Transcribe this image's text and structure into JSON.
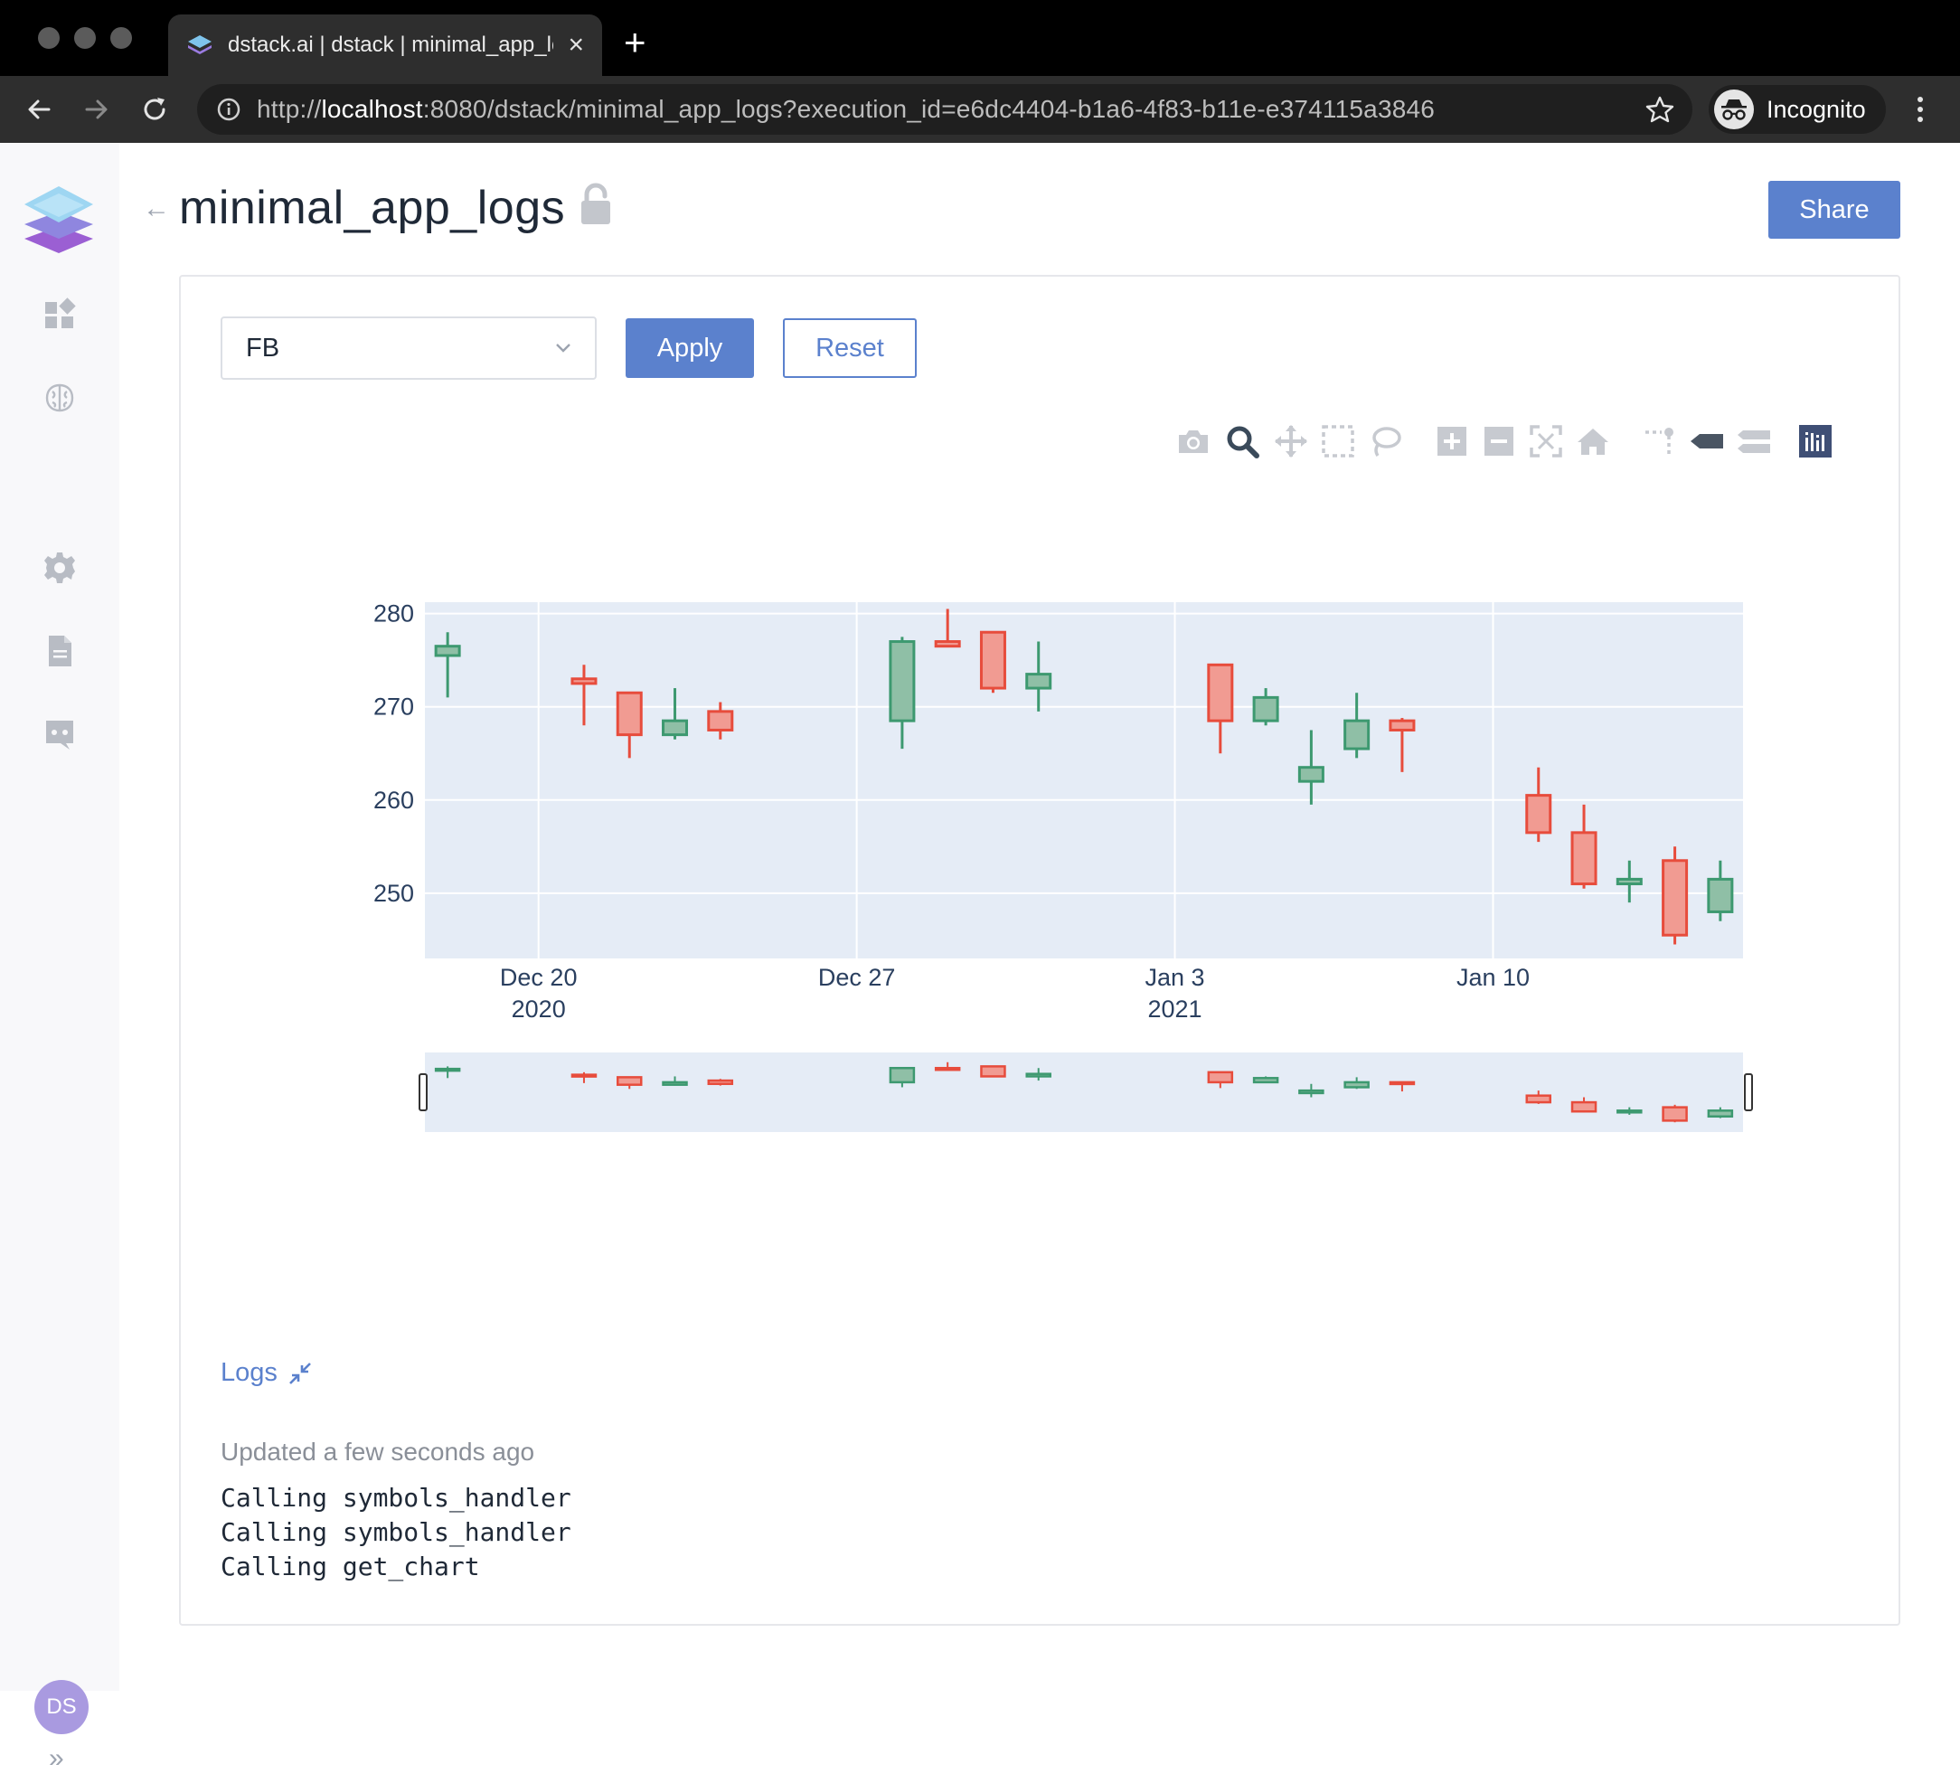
{
  "browser": {
    "tab_title": "dstack.ai | dstack | minimal_app_logs",
    "url_scheme": "http://",
    "url_host": "localhost",
    "url_rest": ":8080/dstack/minimal_app_logs?execution_id=e6dc4404-b1a6-4f83-b11e-e374115a3846",
    "profile_label": "Incognito"
  },
  "sidebar": {
    "user_initials": "DS",
    "expand_label": "»"
  },
  "header": {
    "title": "minimal_app_logs",
    "share_label": "Share"
  },
  "controls": {
    "symbol_value": "FB",
    "apply_label": "Apply",
    "reset_label": "Reset"
  },
  "modebar_icons": [
    "camera-icon",
    "zoom-icon",
    "pan-icon",
    "box-select-icon",
    "lasso-icon",
    "zoom-in-icon",
    "zoom-out-icon",
    "autoscale-icon",
    "reset-axes-icon",
    "spike-lines-icon",
    "hover-closest-icon",
    "hover-compare-icon",
    "plotly-logo-icon"
  ],
  "logs": {
    "toggle_label": "Logs",
    "updated_text": "Updated a few seconds ago",
    "lines": [
      "Calling symbols_handler",
      "Calling symbols_handler",
      "Calling get_chart"
    ]
  },
  "colors": {
    "accent": "#5b81cd",
    "increasing": "#3d9970",
    "decreasing": "#e74c3c",
    "plot_bg": "#e5ecf6"
  },
  "chart_data": {
    "type": "candlestick",
    "title": "",
    "xlabel": "",
    "ylabel": "",
    "ylim": [
      243,
      282
    ],
    "yticks": [
      250,
      260,
      270,
      280
    ],
    "xticks": [
      {
        "date": "2020-12-20",
        "label": "Dec 20",
        "sub": "2020"
      },
      {
        "date": "2020-12-27",
        "label": "Dec 27",
        "sub": ""
      },
      {
        "date": "2021-01-03",
        "label": "Jan 3",
        "sub": "2021"
      },
      {
        "date": "2021-01-10",
        "label": "Jan 10",
        "sub": ""
      }
    ],
    "x_range": [
      "2020-12-17T12:00",
      "2021-01-15T12:00"
    ],
    "grid": true,
    "rangeslider": true,
    "candles": [
      {
        "date": "2020-12-18",
        "open": 275.5,
        "high": 278.0,
        "low": 271.0,
        "close": 276.5
      },
      {
        "date": "2020-12-21",
        "open": 273.0,
        "high": 274.5,
        "low": 268.0,
        "close": 272.5
      },
      {
        "date": "2020-12-22",
        "open": 271.5,
        "high": 271.5,
        "low": 264.5,
        "close": 267.0
      },
      {
        "date": "2020-12-23",
        "open": 267.0,
        "high": 272.0,
        "low": 266.5,
        "close": 268.5
      },
      {
        "date": "2020-12-24",
        "open": 269.5,
        "high": 270.5,
        "low": 266.5,
        "close": 267.5
      },
      {
        "date": "2020-12-28",
        "open": 268.5,
        "high": 277.5,
        "low": 265.5,
        "close": 277.0
      },
      {
        "date": "2020-12-29",
        "open": 277.0,
        "high": 280.5,
        "low": 276.5,
        "close": 276.5
      },
      {
        "date": "2020-12-30",
        "open": 278.0,
        "high": 278.0,
        "low": 271.5,
        "close": 272.0
      },
      {
        "date": "2020-12-31",
        "open": 272.0,
        "high": 277.0,
        "low": 269.5,
        "close": 273.5
      },
      {
        "date": "2021-01-04",
        "open": 274.5,
        "high": 274.5,
        "low": 265.0,
        "close": 268.5
      },
      {
        "date": "2021-01-05",
        "open": 268.5,
        "high": 272.0,
        "low": 268.0,
        "close": 271.0
      },
      {
        "date": "2021-01-06",
        "open": 262.0,
        "high": 267.5,
        "low": 259.5,
        "close": 263.5
      },
      {
        "date": "2021-01-07",
        "open": 265.5,
        "high": 271.5,
        "low": 264.5,
        "close": 268.5
      },
      {
        "date": "2021-01-08",
        "open": 268.5,
        "high": 268.8,
        "low": 263.0,
        "close": 267.5
      },
      {
        "date": "2021-01-11",
        "open": 260.5,
        "high": 263.5,
        "low": 255.5,
        "close": 256.5
      },
      {
        "date": "2021-01-12",
        "open": 256.5,
        "high": 259.5,
        "low": 250.5,
        "close": 251.0
      },
      {
        "date": "2021-01-13",
        "open": 251.0,
        "high": 253.5,
        "low": 249.0,
        "close": 251.5
      },
      {
        "date": "2021-01-14",
        "open": 253.5,
        "high": 255.0,
        "low": 244.5,
        "close": 245.5
      },
      {
        "date": "2021-01-15",
        "open": 248.0,
        "high": 253.5,
        "low": 247.0,
        "close": 251.5
      }
    ]
  }
}
